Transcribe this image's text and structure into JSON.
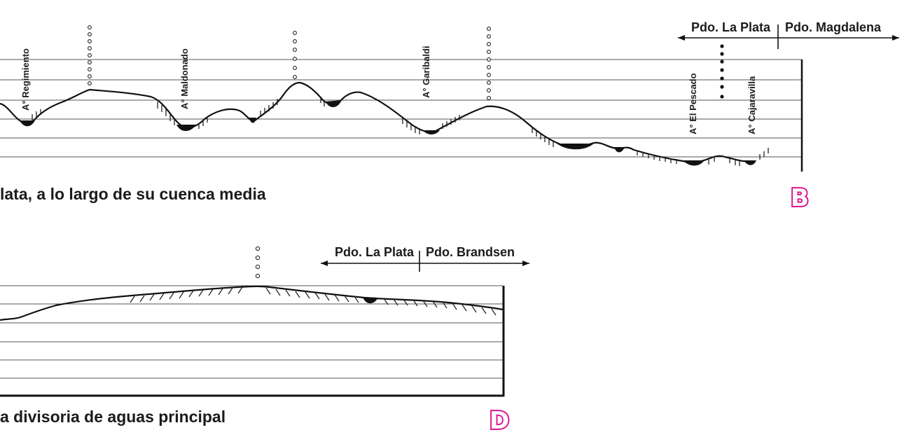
{
  "profile_b": {
    "caption": "lata, a lo largo de su cuenca media",
    "panel_letter": "B",
    "districts": {
      "left": "Pdo. La Plata",
      "right": "Pdo. Magdalena"
    },
    "streams": [
      "A° Regimiento",
      "A° Maldonado",
      "A° Garibaldi",
      "A° El Pescado",
      "A° Cajaravilla"
    ]
  },
  "profile_d": {
    "caption": "a divisoria de aguas principal",
    "panel_letter": "D",
    "districts": {
      "left": "Pdo. La Plata",
      "right": "Pdo. Brandsen"
    }
  }
}
